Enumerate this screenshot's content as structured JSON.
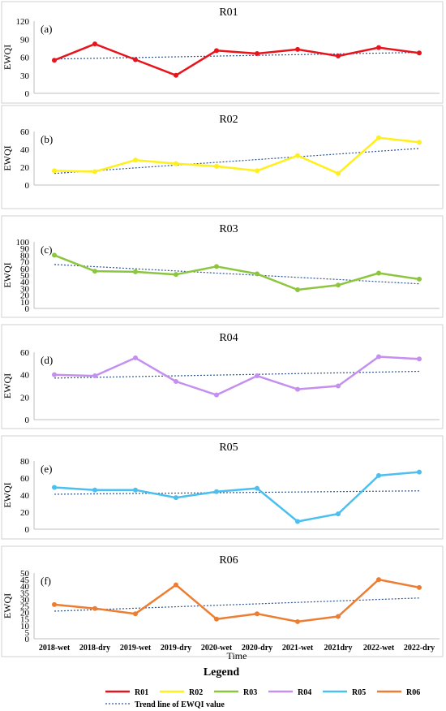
{
  "x_axis_title": "Time",
  "chart_data": [
    {
      "type": "line",
      "title": "R01",
      "panel_label": "(a)",
      "ylabel": "EWQI",
      "ylim": [
        0,
        120
      ],
      "yticks": [
        0,
        30,
        60,
        90,
        120
      ],
      "grid": false,
      "categories": [
        "2018-wet",
        "2018-dry",
        "2019-wet",
        "2019-dry",
        "2020-wet",
        "2020-dry",
        "2021-wet",
        "2021dry",
        "2022-wet",
        "2022-dry"
      ],
      "series": [
        {
          "name": "R01",
          "color": "#e8141b",
          "values": [
            55,
            82,
            56,
            30,
            71,
            66,
            73,
            62,
            76,
            67
          ]
        }
      ],
      "trend": [
        57,
        68
      ]
    },
    {
      "type": "line",
      "title": "R02",
      "panel_label": "(b)",
      "ylabel": "EWQI",
      "ylim": [
        0,
        60
      ],
      "yticks": [
        0,
        20,
        40,
        60
      ],
      "grid": false,
      "categories": [
        "2018-wet",
        "2018-dry",
        "2019-wet",
        "2019-dry",
        "2020-wet",
        "2020-dry",
        "2021-wet",
        "2021dry",
        "2022-wet",
        "2022-dry"
      ],
      "series": [
        {
          "name": "R02",
          "color": "#ffef1a",
          "values": [
            16,
            15,
            28,
            24,
            21,
            16,
            33,
            13,
            53,
            48
          ]
        }
      ],
      "trend": [
        13,
        41
      ]
    },
    {
      "type": "line",
      "title": "R03",
      "panel_label": "(c)",
      "ylabel": "EWQI",
      "ylim": [
        0,
        100
      ],
      "yticks": [
        0,
        10,
        20,
        30,
        40,
        50,
        60,
        70,
        80,
        90,
        100
      ],
      "grid": false,
      "categories": [
        "2018-wet",
        "2018-dry",
        "2019-wet",
        "2019-dry",
        "2020-wet",
        "2020-dry",
        "2021-wet",
        "2021dry",
        "2022-wet",
        "2022-dry"
      ],
      "series": [
        {
          "name": "R03",
          "color": "#8cc63f",
          "values": [
            80,
            56,
            55,
            51,
            63,
            52,
            28,
            35,
            53,
            44
          ]
        }
      ],
      "trend": [
        66,
        37
      ]
    },
    {
      "type": "line",
      "title": "R04",
      "panel_label": "(d)",
      "ylabel": "EWQI",
      "ylim": [
        0,
        60
      ],
      "yticks": [
        0,
        20,
        40,
        60
      ],
      "grid": false,
      "categories": [
        "2018-wet",
        "2018-dry",
        "2019-wet",
        "2019-dry",
        "2020-wet",
        "2020-dry",
        "2021-wet",
        "2021dry",
        "2022-wet",
        "2022-dry"
      ],
      "series": [
        {
          "name": "R04",
          "color": "#c58ff0",
          "values": [
            40,
            39,
            55,
            34,
            22,
            39,
            27,
            30,
            56,
            54
          ]
        }
      ],
      "trend": [
        37,
        43
      ]
    },
    {
      "type": "line",
      "title": "R05",
      "panel_label": "(e)",
      "ylabel": "EWQI",
      "ylim": [
        0,
        80
      ],
      "yticks": [
        0,
        20,
        40,
        60,
        80
      ],
      "grid": false,
      "categories": [
        "2018-wet",
        "2018-dry",
        "2019-wet",
        "2019-dry",
        "2020-wet",
        "2020-dry",
        "2021-wet",
        "2021dry",
        "2022-wet",
        "2022-dry"
      ],
      "series": [
        {
          "name": "R05",
          "color": "#4bbfef",
          "values": [
            49,
            46,
            46,
            37,
            44,
            48,
            9,
            18,
            63,
            67
          ]
        }
      ],
      "trend": [
        41,
        45
      ]
    },
    {
      "type": "line",
      "title": "R06",
      "panel_label": "(f)",
      "ylabel": "EWQI",
      "ylim": [
        0,
        50
      ],
      "yticks": [
        0,
        5,
        10,
        15,
        20,
        25,
        30,
        35,
        40,
        45,
        50
      ],
      "grid": false,
      "categories": [
        "2018-wet",
        "2018-dry",
        "2019-wet",
        "2019-dry",
        "2020-wet",
        "2020-dry",
        "2021-wet",
        "2021dry",
        "2022-wet",
        "2022-dry"
      ],
      "series": [
        {
          "name": "R06",
          "color": "#ec7d31",
          "values": [
            26,
            23,
            19,
            41,
            15,
            19,
            13,
            17,
            45,
            39
          ]
        }
      ],
      "trend": [
        21,
        31
      ]
    }
  ],
  "legend": {
    "title": "Legend",
    "items": [
      {
        "label": "R01",
        "color": "#e8141b"
      },
      {
        "label": "R02",
        "color": "#ffef1a"
      },
      {
        "label": "R03",
        "color": "#8cc63f"
      },
      {
        "label": "R04",
        "color": "#c58ff0"
      },
      {
        "label": "R05",
        "color": "#4bbfef"
      },
      {
        "label": "R06",
        "color": "#ec7d31"
      }
    ],
    "trend_label": "Trend line of EWQI value",
    "trend_color": "#2f5597"
  }
}
